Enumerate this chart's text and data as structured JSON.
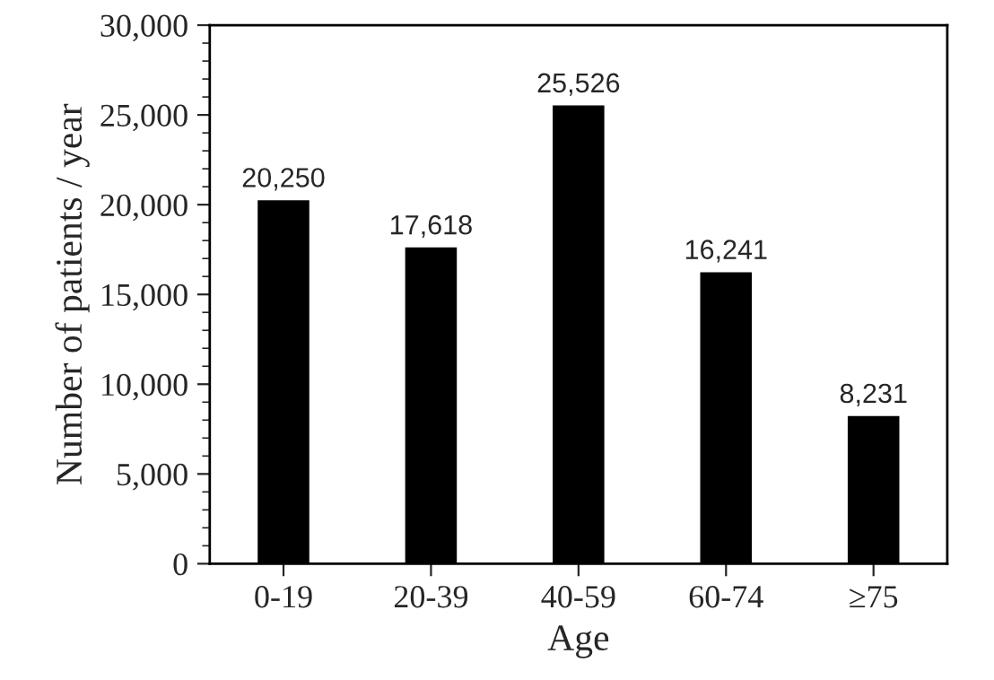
{
  "chart_data": {
    "type": "bar",
    "xlabel": "Age",
    "ylabel": "Number of patients / year",
    "categories": [
      "0-19",
      "20-39",
      "40-59",
      "60-74",
      "≥75"
    ],
    "values": [
      20250,
      17618,
      25526,
      16241,
      8231
    ],
    "value_labels": [
      "20,250",
      "17,618",
      "25,526",
      "16,241",
      "8,231"
    ],
    "color": "#000000",
    "ylim": [
      0,
      30000
    ],
    "yticks": [
      {
        "value": 0,
        "label": "0"
      },
      {
        "value": 5000,
        "label": "5,000"
      },
      {
        "value": 10000,
        "label": "10,000"
      },
      {
        "value": 15000,
        "label": "15,000"
      },
      {
        "value": 20000,
        "label": "20,000"
      },
      {
        "value": 25000,
        "label": "25,000"
      },
      {
        "value": 30000,
        "label": "30,000"
      }
    ],
    "grid": false,
    "legend": false
  }
}
